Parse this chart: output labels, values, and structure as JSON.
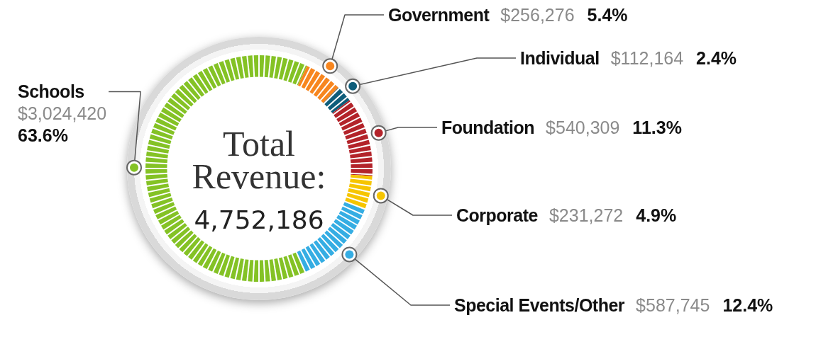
{
  "chart_data": {
    "type": "donut",
    "title": "Total Revenue:",
    "subtitle": "4,752,186",
    "categories": [
      "Government",
      "Individual",
      "Foundation",
      "Corporate",
      "Special Events/Other",
      "Schools"
    ],
    "values": [
      256276,
      112164,
      540309,
      231272,
      587745,
      3024420
    ],
    "value_labels": [
      "$256,276 5.4%",
      "$112,164 2.4%",
      "$540,309 11.3%",
      "$231,272 4.9%",
      "$587,745 12.4%",
      "$3,024,420 63.6%"
    ],
    "colors": [
      "#f7861f",
      "#0e5d7a",
      "#b3232a",
      "#f6c500",
      "#35ade3",
      "#84c225"
    ],
    "legend": false
  }
}
